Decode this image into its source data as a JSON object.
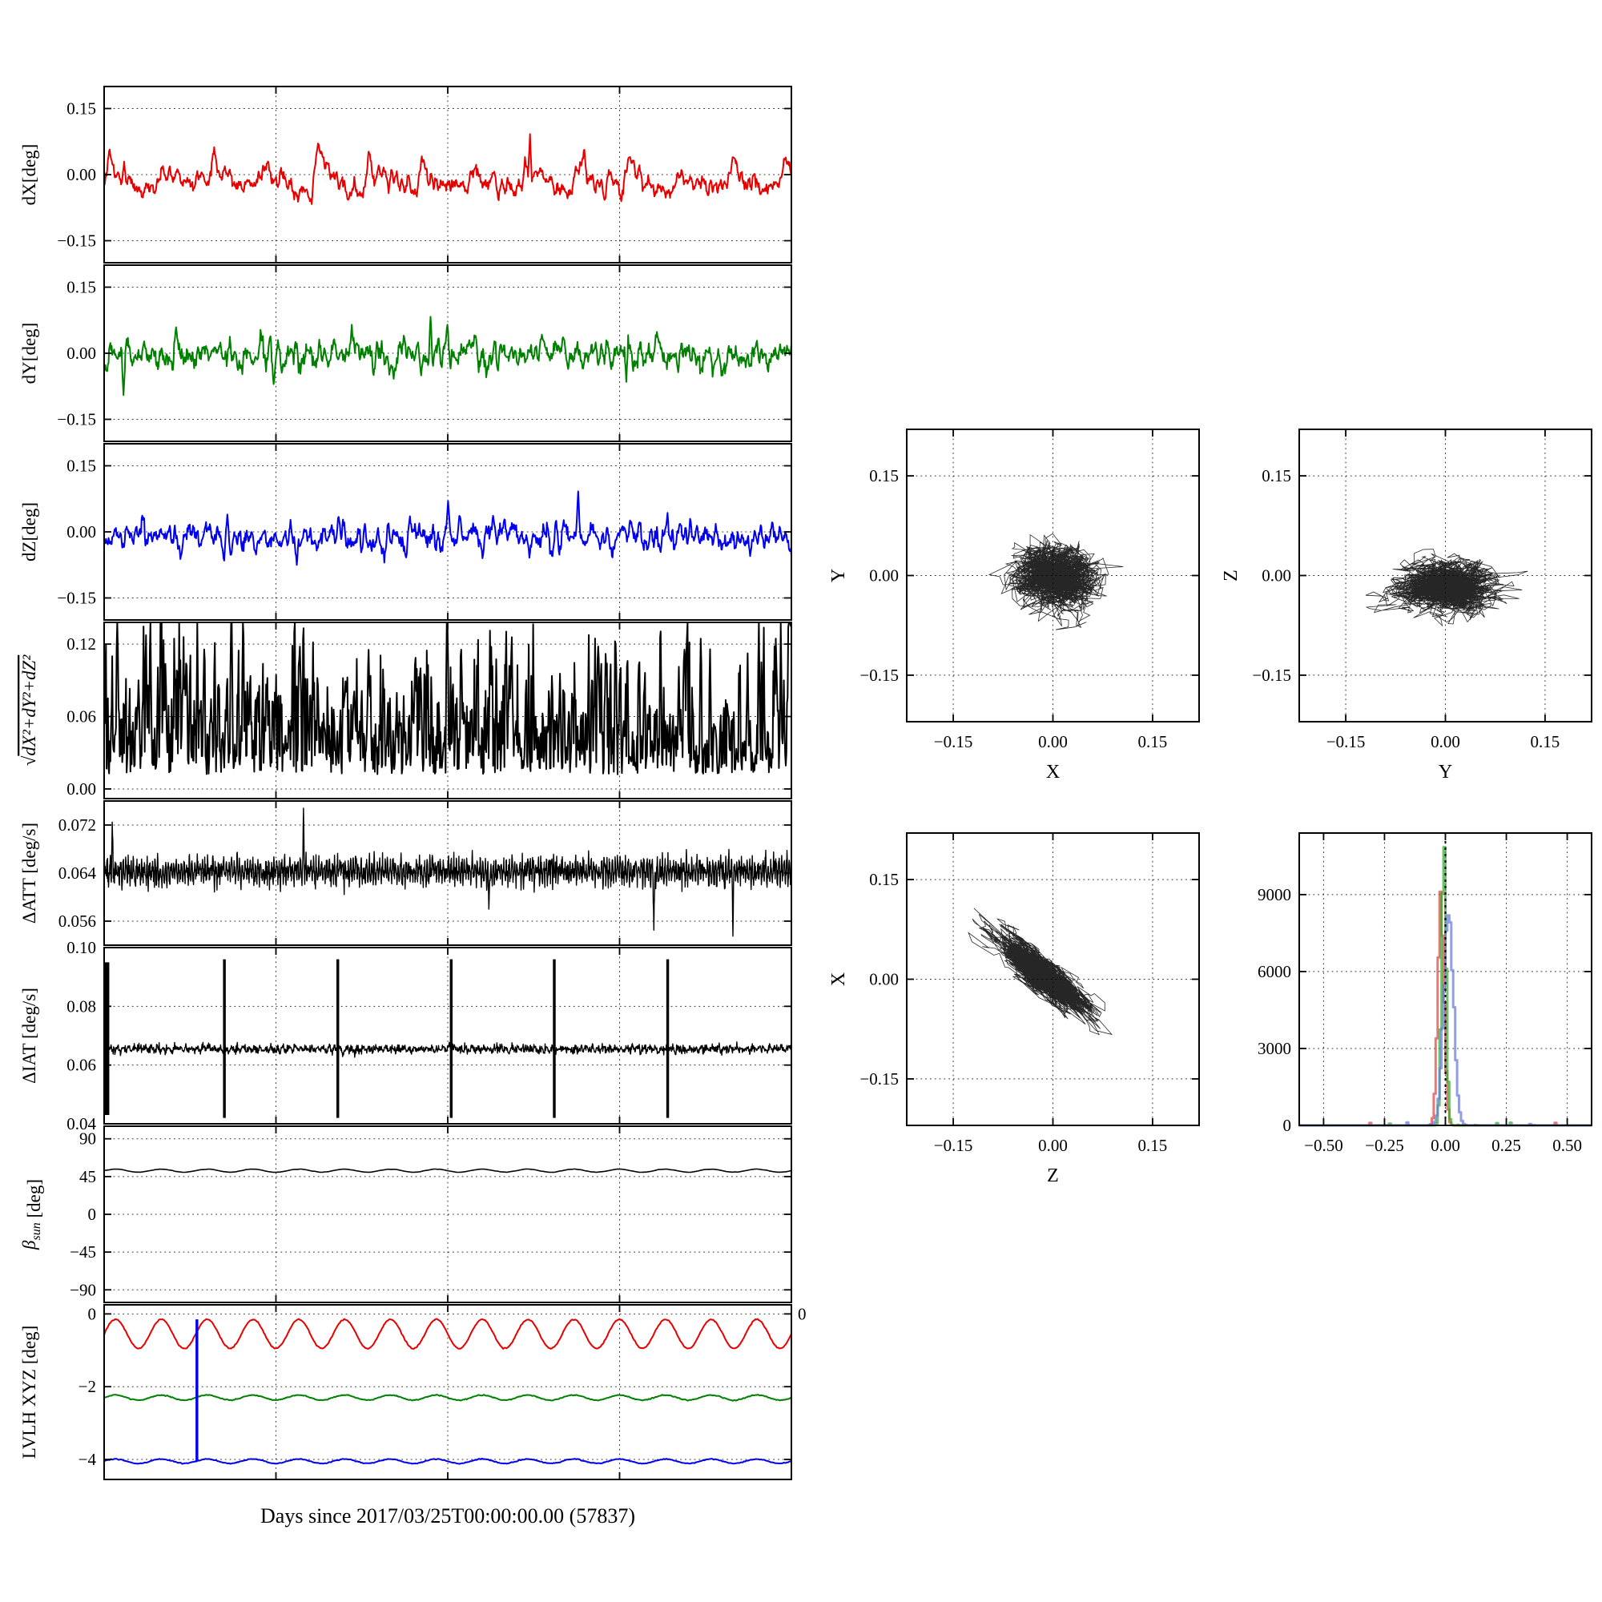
{
  "figure": {
    "bg": "#ffffff",
    "xlabel": "Days since 2017/03/25T00:00:00.00 (57837)"
  },
  "chart_data": [
    {
      "id": "dX",
      "type": "line",
      "ylabel": [
        {
          "t": "dX[deg]"
        }
      ],
      "ylim": [
        -0.2,
        0.2
      ],
      "yticks": {
        "values": [
          0.15,
          0.0,
          -0.15
        ],
        "labels": [
          "0.15",
          "0.00",
          "−0.15"
        ]
      },
      "series": [
        {
          "name": "dX",
          "color": "#e60000",
          "width": 2.0,
          "gen": {
            "n": 1100,
            "baseline": -0.012,
            "noise": 0.03,
            "smooth": 2,
            "saw": {
              "period": 0.0755,
              "amp": 0.075
            },
            "spikes": [
              {
                "x": 0.62,
                "v": 0.092
              },
              {
                "x": 0.455,
                "v": -0.05
              }
            ]
          }
        }
      ]
    },
    {
      "id": "dY",
      "type": "line",
      "ylabel": [
        {
          "t": "dY[deg]"
        }
      ],
      "ylim": [
        -0.2,
        0.2
      ],
      "yticks": {
        "values": [
          0.15,
          0.0,
          -0.15
        ],
        "labels": [
          "0.15",
          "0.00",
          "−0.15"
        ]
      },
      "series": [
        {
          "name": "dY",
          "color": "#008000",
          "width": 2.0,
          "gen": {
            "n": 1100,
            "baseline": -0.004,
            "noise": 0.045,
            "smooth": 2,
            "spikes": [
              {
                "x": 0.028,
                "v": -0.095
              },
              {
                "x": 0.475,
                "v": 0.083
              },
              {
                "x": 0.76,
                "v": -0.065
              },
              {
                "x": 0.9,
                "v": -0.05
              }
            ]
          }
        }
      ]
    },
    {
      "id": "dZ",
      "type": "line",
      "ylabel": [
        {
          "t": "dZ[deg]"
        }
      ],
      "ylim": [
        -0.2,
        0.2
      ],
      "yticks": {
        "values": [
          0.15,
          0.0,
          -0.15
        ],
        "labels": [
          "0.15",
          "0.00",
          "−0.15"
        ]
      },
      "series": [
        {
          "name": "dZ",
          "color": "#0000ee",
          "width": 2.0,
          "gen": {
            "n": 1100,
            "baseline": -0.012,
            "noise": 0.04,
            "smooth": 2,
            "spikes": [
              {
                "x": 0.28,
                "v": -0.075
              },
              {
                "x": 0.5,
                "v": 0.07
              },
              {
                "x": 0.69,
                "v": 0.092
              },
              {
                "x": 0.94,
                "v": -0.055
              }
            ]
          }
        }
      ]
    },
    {
      "id": "mag",
      "type": "line",
      "ylabel": [
        {
          "t": "√",
          "italic": true
        },
        {
          "t": "dX²+dY²+dZ²",
          "overline": true,
          "italic": true
        }
      ],
      "ylim": [
        -0.008,
        0.138
      ],
      "yticks": {
        "values": [
          0.12,
          0.06,
          0.0
        ],
        "labels": [
          "0.12",
          "0.06",
          "0.00"
        ]
      },
      "series": [
        {
          "name": "magnitude",
          "color": "#000000",
          "width": 2.0,
          "gen": {
            "n": 1100,
            "baseline": 0.012,
            "noise": 0.09,
            "smooth": 1,
            "abs": true,
            "spikes": [
              {
                "x": 0.05,
                "v": 0.09
              },
              {
                "x": 0.285,
                "v": 0.118
              },
              {
                "x": 0.46,
                "v": 0.1
              },
              {
                "x": 0.59,
                "v": 0.102
              },
              {
                "x": 0.73,
                "v": 0.112
              }
            ]
          }
        }
      ]
    },
    {
      "id": "dATT",
      "type": "line",
      "ylabel": [
        {
          "t": "ΔATT [deg/s]"
        }
      ],
      "ylim": [
        0.052,
        0.076
      ],
      "yticks": {
        "values": [
          0.072,
          0.064,
          0.056
        ],
        "labels": [
          "0.072",
          "0.064",
          "0.056"
        ]
      },
      "series": [
        {
          "name": "dATT",
          "color": "#000000",
          "width": 1.4,
          "gen": {
            "n": 2200,
            "baseline": 0.0643,
            "noise": 0.0009,
            "osc": {
              "amp": 0.0013,
              "cycles": 260
            },
            "spikes": [
              {
                "x": 0.012,
                "v": 0.0725
              },
              {
                "x": 0.29,
                "v": 0.0748
              },
              {
                "x": 0.56,
                "v": 0.058
              },
              {
                "x": 0.8,
                "v": 0.0545
              },
              {
                "x": 0.915,
                "v": 0.0535
              }
            ]
          }
        }
      ]
    },
    {
      "id": "dIAT",
      "type": "line",
      "ylabel": [
        {
          "t": "ΔIAT [deg/s]"
        }
      ],
      "ylim": [
        0.04,
        0.1
      ],
      "yticks": {
        "values": [
          0.1,
          0.08,
          0.06,
          0.04
        ],
        "labels": [
          "0.10",
          "0.08",
          "0.06",
          "0.04"
        ]
      },
      "series": [
        {
          "name": "dIAT",
          "color": "#000000",
          "width": 1.4,
          "gen": {
            "n": 1600,
            "baseline": 0.0655,
            "noise": 0.0007,
            "osc": {
              "amp": 0.0006,
              "cycles": 120
            }
          },
          "vbars": [
            {
              "x": 0.004,
              "lo": 0.043,
              "hi": 0.095,
              "w": 0.007
            },
            {
              "x": 0.175,
              "lo": 0.042,
              "hi": 0.096,
              "w": 0.004
            },
            {
              "x": 0.34,
              "lo": 0.042,
              "hi": 0.096,
              "w": 0.004
            },
            {
              "x": 0.505,
              "lo": 0.042,
              "hi": 0.096,
              "w": 0.004
            },
            {
              "x": 0.655,
              "lo": 0.042,
              "hi": 0.096,
              "w": 0.004
            },
            {
              "x": 0.82,
              "lo": 0.042,
              "hi": 0.096,
              "w": 0.004
            }
          ]
        }
      ]
    },
    {
      "id": "beta",
      "type": "line",
      "ylabel": [
        {
          "t": "β",
          "italic": true
        },
        {
          "t": "sun",
          "sub": true,
          "italic": true
        },
        {
          "t": " [deg]"
        }
      ],
      "ylim": [
        -105,
        105
      ],
      "yticks": {
        "values": [
          90,
          45,
          0,
          -45,
          -90
        ],
        "labels": [
          "90",
          "45",
          "0",
          "−45",
          "−90"
        ]
      },
      "series": [
        {
          "name": "beta_sun",
          "color": "#000000",
          "width": 1.6,
          "gen": {
            "n": 900,
            "baseline": 52,
            "noise": 0.25,
            "smooth": 2,
            "osc": {
              "amp": 1.8,
              "cycles": 15
            }
          }
        }
      ]
    },
    {
      "id": "lvlh",
      "type": "line",
      "ylabel": [
        {
          "t": "LVLH XYZ [deg]"
        }
      ],
      "ylim": [
        -4.55,
        0.25
      ],
      "yticks": {
        "values": [
          0,
          -2,
          -4
        ],
        "labels": [
          "0",
          "−2",
          "−4"
        ]
      },
      "right_tick": {
        "value": 0,
        "label": "0"
      },
      "series": [
        {
          "name": "lvlh_x",
          "color": "#e60000",
          "width": 2.0,
          "gen": {
            "n": 1400,
            "baseline": -0.55,
            "noise": 0.012,
            "smooth": 1,
            "osc": {
              "amp": 0.4,
              "cycles": 15
            }
          }
        },
        {
          "name": "lvlh_y",
          "color": "#008000",
          "width": 2.0,
          "gen": {
            "n": 1400,
            "baseline": -2.3,
            "noise": 0.01,
            "smooth": 1,
            "osc": {
              "amp": 0.07,
              "cycles": 15
            }
          }
        },
        {
          "name": "lvlh_z",
          "color": "#0000ee",
          "width": 2.0,
          "gen": {
            "n": 1400,
            "baseline": -4.05,
            "noise": 0.01,
            "smooth": 1,
            "osc": {
              "amp": 0.06,
              "cycles": 15
            }
          },
          "vbars": [
            {
              "x": 0.135,
              "lo": -4.05,
              "hi": -0.15,
              "w": 0.004
            }
          ]
        }
      ]
    },
    {
      "id": "scatterYX",
      "type": "scatter",
      "xlabel": "X",
      "ylabel": "Y",
      "lim": [
        -0.22,
        0.22
      ],
      "ticks": {
        "values": [
          -0.15,
          0.0,
          0.15
        ],
        "labels": [
          "−0.15",
          "0.00",
          "0.15"
        ]
      },
      "walk": {
        "n": 2600,
        "sd": 0.028,
        "sdy": 0.021,
        "cx": 0.004,
        "cy": -0.003,
        "theta": 0.12,
        "burst": 900,
        "burstGain": 1.8
      }
    },
    {
      "id": "scatterZY",
      "type": "scatter",
      "xlabel": "Y",
      "ylabel": "Z",
      "lim": [
        -0.22,
        0.22
      ],
      "ticks": {
        "values": [
          -0.15,
          0.0,
          0.15
        ],
        "labels": [
          "−0.15",
          "0.00",
          "0.15"
        ]
      },
      "walk": {
        "n": 2600,
        "sd": 0.03,
        "sdy": 0.016,
        "cx": 0.0,
        "cy": -0.02,
        "theta": 0.12,
        "burst": 700,
        "burstGain": 2.4
      }
    },
    {
      "id": "scatterXZ",
      "type": "scatter",
      "xlabel": "Z",
      "ylabel": "X",
      "lim": [
        -0.22,
        0.22
      ],
      "ticks": {
        "values": [
          -0.15,
          0.0,
          0.15
        ],
        "labels": [
          "−0.15",
          "0.00",
          "0.15"
        ]
      },
      "walk": {
        "n": 2600,
        "sd": 0.033,
        "sdy": 0.013,
        "cx": -0.008,
        "cy": 0.002,
        "theta": 0.1,
        "slope": -0.75,
        "burst": 800,
        "burstGain": 1.6
      }
    },
    {
      "id": "hist",
      "type": "line",
      "subtype": "histogram",
      "xlim": [
        -0.6,
        0.6
      ],
      "xticks": {
        "values": [
          -0.5,
          -0.25,
          0.0,
          0.25,
          0.5
        ],
        "labels": [
          "−0.50",
          "−0.25",
          "0.00",
          "0.25",
          "0.50"
        ]
      },
      "ylim": [
        0,
        11400
      ],
      "yticks": {
        "values": [
          9000,
          6000,
          3000,
          0
        ],
        "labels": [
          "9000",
          "6000",
          "3000",
          "0"
        ]
      },
      "vline": 0,
      "series": [
        {
          "name": "dX-hist",
          "color": "#dd4444",
          "amp": 9000,
          "mu": -0.018,
          "sigma": 0.013
        },
        {
          "name": "dY-hist",
          "color": "#33aa33",
          "amp": 10800,
          "mu": -0.006,
          "sigma": 0.0095
        },
        {
          "name": "dZ-hist",
          "color": "#6677dd",
          "amp": 8200,
          "mu": 0.013,
          "sigma": 0.02
        }
      ]
    }
  ]
}
